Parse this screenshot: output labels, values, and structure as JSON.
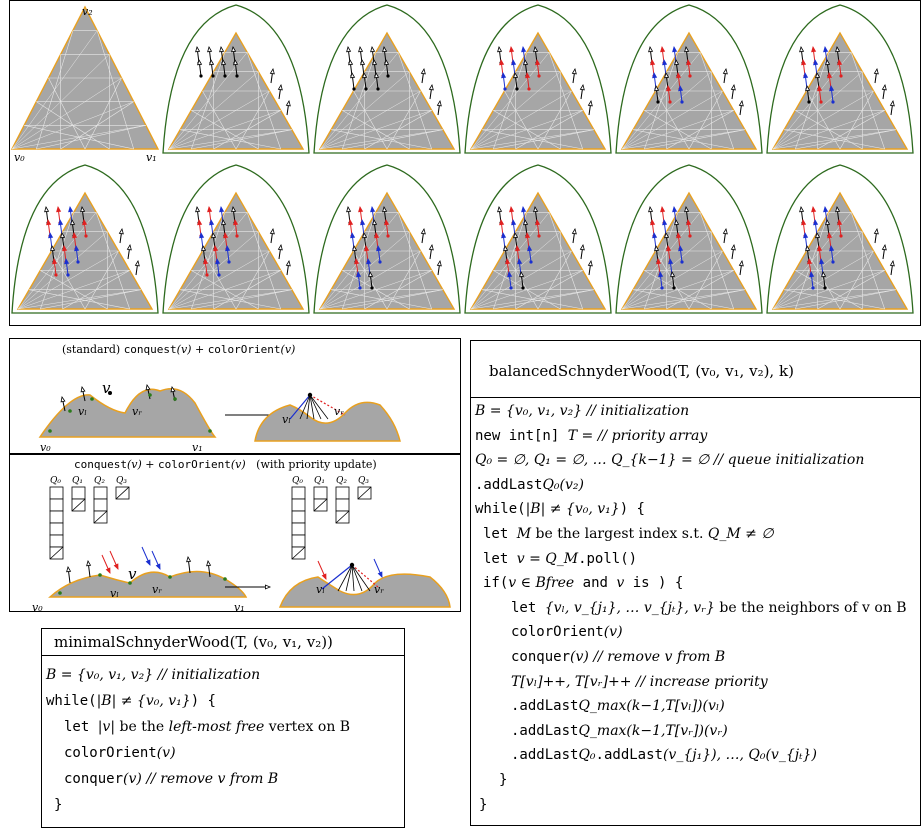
{
  "top_panel": {
    "labels": {
      "v2": "v₂",
      "v0": "v₀",
      "v1": "v₁"
    }
  },
  "mid_left": {
    "standard_caption_prefix": "(standard) ",
    "standard_caption_code1": "conquest",
    "standard_caption_mid": "(v) + ",
    "standard_caption_code2": "colorOrient",
    "standard_caption_suffix": "(v)",
    "labels": {
      "v": "v",
      "vl": "vₗ",
      "vr": "vᵣ",
      "v0": "v₀",
      "v1": "v₁"
    },
    "priority_caption_code1": "conquest",
    "priority_caption_mid": "(v) + ",
    "priority_caption_code2": "colorOrient",
    "priority_caption_suffix": "(v)",
    "priority_caption_note": "(with priority update)",
    "queues": [
      "Q₀",
      "Q₁",
      "Q₂",
      "Q₃"
    ]
  },
  "minimal": {
    "title": "minimalSchnyderWood(T, (v₀, v₁, v₂))",
    "lines": [
      {
        "math": "B = {v₀, v₁, v₂} ",
        "comment": "// initialization"
      },
      {
        "code": "while(",
        "math": "|B| ≠ {v₀, v₁}",
        "code2": ")  {"
      },
      {
        "code": "let ",
        "math": "|v|",
        "text": " be the ",
        "italic": "left-most free",
        "text2": " vertex on B"
      },
      {
        "code": "colorOrient",
        "math": "(v)"
      },
      {
        "code": "conquer",
        "math": "(v) ",
        "comment": "// remove v from B"
      },
      {
        "code": "}"
      }
    ]
  },
  "balanced": {
    "title": "balancedSchnyderWood(T, (v₀, v₁, v₂), k)",
    "lines": [
      {
        "math": "B = {v₀, v₁, v₂} ",
        "comment": "// initialization"
      },
      {
        "math": "T = ",
        "code": "new int[n] ",
        "comment": "// priority array"
      },
      {
        "math": "Q₀ = ∅, Q₁ = ∅, … Q_{k−1} = ∅ ",
        "comment": "// queue initialization"
      },
      {
        "math": "Q₀",
        "code": ".addLast",
        "math2": "(v₂)"
      },
      {
        "code": "while(",
        "math": "|B| ≠ {v₀, v₁}",
        "code2": ")  {"
      },
      {
        "code": "let ",
        "math": "M",
        "text": " be the largest index s.t. ",
        "math2": "Q_M ≠ ∅"
      },
      {
        "code": "let ",
        "math": "v = Q_M",
        "code2": ".poll()"
      },
      {
        "code": "if(",
        "math": "v ∈ B",
        "code2": " and ",
        "math2": "v",
        "code3": " is ",
        "italic": "free",
        "code4": ")  {"
      },
      {
        "code": "let ",
        "math": "{vₗ, v_{j₁}, … v_{jₜ}, vᵣ}",
        "text": " be the neighbors of v on B"
      },
      {
        "code": "colorOrient",
        "math": "(v)"
      },
      {
        "code": "conquer",
        "math": "(v) ",
        "comment": "// remove v from B"
      },
      {
        "math": "T[vₗ]++, T[vᵣ]++ ",
        "comment": "// increase priority"
      },
      {
        "math": "Q_max(k−1,T[vₗ])",
        "code": ".addLast",
        "math2": "(vₗ)"
      },
      {
        "math": "Q_max(k−1,T[vᵣ])",
        "code": ".addLast",
        "math2": "(vᵣ)"
      },
      {
        "math": "Q₀",
        "code": ".addLast",
        "math2": "(v_{j₁}), …, Q₀",
        "code2": ".addLast",
        "math3": "(v_{jₜ})"
      },
      {
        "code": "}"
      },
      {
        "code": "}"
      }
    ]
  },
  "colors": {
    "face": "#a6a6a6",
    "boundary": "#e8a020",
    "outer": "#2d6a1e",
    "red": "#e02020",
    "blue": "#1a2fd0",
    "green_vertex": "#2a7a1a"
  }
}
